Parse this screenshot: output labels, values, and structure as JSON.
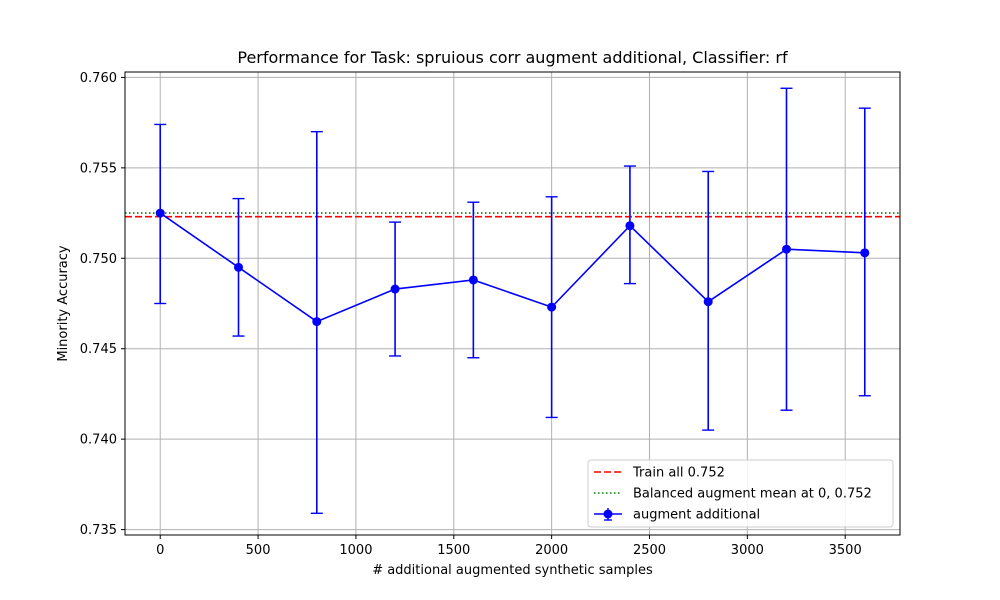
{
  "chart_data": {
    "type": "line",
    "title": "Performance for Task: spruious corr augment additional, Classifier: rf",
    "xlabel": "# additional augmented synthetic samples",
    "ylabel": "Minority Accuracy",
    "xlim": [
      -180,
      3780
    ],
    "ylim": [
      0.7347,
      0.7603
    ],
    "x_ticks": [
      0,
      500,
      1000,
      1500,
      2000,
      2500,
      3000,
      3500
    ],
    "y_ticks": [
      0.735,
      0.74,
      0.745,
      0.75,
      0.755,
      0.76
    ],
    "x_tick_labels": [
      "0",
      "500",
      "1000",
      "1500",
      "2000",
      "2500",
      "3000",
      "3500"
    ],
    "y_tick_labels": [
      "0.735",
      "0.740",
      "0.745",
      "0.750",
      "0.755",
      "0.760"
    ],
    "grid": true,
    "legend_position": "bottom-right",
    "series": [
      {
        "name": "augment additional",
        "color": "#0000ff",
        "marker": "circle",
        "x": [
          0,
          400,
          800,
          1200,
          1600,
          2000,
          2400,
          2800,
          3200,
          3600
        ],
        "y": [
          0.7525,
          0.7495,
          0.7465,
          0.7483,
          0.7488,
          0.7473,
          0.7518,
          0.7476,
          0.7505,
          0.7503
        ],
        "yerr_low": [
          0.7475,
          0.7457,
          0.7359,
          0.7446,
          0.7445,
          0.7412,
          0.7486,
          0.7405,
          0.7416,
          0.7424
        ],
        "yerr_high": [
          0.7574,
          0.7533,
          0.757,
          0.752,
          0.7531,
          0.7534,
          0.7551,
          0.7548,
          0.7594,
          0.7583
        ]
      }
    ],
    "reference_lines": [
      {
        "name": "Train all  0.752",
        "y": 0.7523,
        "color": "#ff0000",
        "style": "dashed"
      },
      {
        "name": "Balanced augment mean at 0, 0.752",
        "y": 0.7525,
        "color": "#008000",
        "style": "dotted"
      }
    ]
  }
}
